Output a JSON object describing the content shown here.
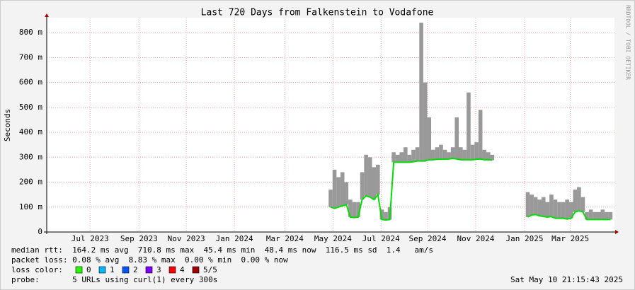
{
  "chart_data": {
    "type": "line",
    "title": "Last 720 Days from Falkenstein to Vodafone",
    "y_label": "Seconds",
    "side_label": "RRDTOOL / TOBI OETIKER",
    "xlim": [
      0,
      720
    ],
    "xticks": [
      {
        "value": 55,
        "label": "Jul 2023"
      },
      {
        "value": 117,
        "label": "Sep 2023"
      },
      {
        "value": 177,
        "label": "Nov 2023"
      },
      {
        "value": 238,
        "label": "Jan 2024"
      },
      {
        "value": 302,
        "label": "Mar 2024"
      },
      {
        "value": 363,
        "label": "May 2024"
      },
      {
        "value": 424,
        "label": "Jul 2024"
      },
      {
        "value": 483,
        "label": "Sep 2024"
      },
      {
        "value": 544,
        "label": "Nov 2024"
      },
      {
        "value": 606,
        "label": "Jan 2025"
      },
      {
        "value": 664,
        "label": "Mar 2025"
      }
    ],
    "ylim": [
      0,
      0.86
    ],
    "yticks": [
      0,
      {
        "value": 0.1,
        "label": "100 m"
      },
      {
        "value": 0.2,
        "label": "200 m"
      },
      {
        "value": 0.3,
        "label": "300 m"
      },
      {
        "value": 0.4,
        "label": "400 m"
      },
      {
        "value": 0.5,
        "label": "500 m"
      },
      {
        "value": 0.6,
        "label": "600 m"
      },
      {
        "value": 0.7,
        "label": "700 m"
      },
      {
        "value": 0.8,
        "label": "800 m"
      }
    ],
    "grid": true,
    "x": [
      360,
      365,
      370,
      375,
      380,
      385,
      390,
      395,
      400,
      405,
      410,
      415,
      420,
      425,
      430,
      435,
      440,
      445,
      450,
      455,
      460,
      465,
      470,
      475,
      480,
      485,
      490,
      495,
      500,
      505,
      510,
      515,
      520,
      525,
      530,
      535,
      540,
      545,
      550,
      555,
      560,
      565,
      570,
      575,
      580,
      585,
      590,
      595,
      600,
      605,
      610,
      615,
      620,
      625,
      630,
      635,
      640,
      645,
      650,
      655,
      660,
      665,
      670,
      675,
      680,
      685,
      690,
      695,
      700,
      705,
      710,
      715
    ],
    "series": [
      {
        "color": "#00dd00",
        "values": [
          0.1,
          0.095,
          0.1,
          0.105,
          0.11,
          0.06,
          0.058,
          0.06,
          0.13,
          0.145,
          0.14,
          0.13,
          0.15,
          0.05,
          0.048,
          0.05,
          0.28,
          0.28,
          0.28,
          0.28,
          0.28,
          0.282,
          0.285,
          0.285,
          0.285,
          0.29,
          0.29,
          0.292,
          0.292,
          0.292,
          0.293,
          0.295,
          0.293,
          0.29,
          0.29,
          0.29,
          0.29,
          0.292,
          0.293,
          0.29,
          0.29,
          0.288,
          null,
          null,
          null,
          null,
          null,
          null,
          null,
          null,
          0.06,
          0.068,
          0.07,
          0.065,
          0.062,
          0.06,
          0.062,
          0.055,
          0.055,
          0.055,
          0.052,
          0.055,
          0.08,
          0.085,
          0.08,
          0.05,
          0.05,
          0.05,
          0.05,
          0.05,
          0.05,
          0.05
        ]
      },
      {
        "color": "#999999",
        "values": [
          0.17,
          0.25,
          0.22,
          0.24,
          0.2,
          0.13,
          0.12,
          0.12,
          0.24,
          0.31,
          0.3,
          0.26,
          0.27,
          0.09,
          0.08,
          0.1,
          0.32,
          0.31,
          0.32,
          0.34,
          0.31,
          0.33,
          0.34,
          0.84,
          0.6,
          0.46,
          0.33,
          0.34,
          0.35,
          0.33,
          0.32,
          0.34,
          0.46,
          0.34,
          0.33,
          0.56,
          0.35,
          0.36,
          0.49,
          0.33,
          0.32,
          0.31,
          null,
          null,
          null,
          null,
          null,
          null,
          null,
          null,
          0.16,
          0.15,
          0.14,
          0.13,
          0.14,
          0.12,
          0.15,
          0.13,
          0.12,
          0.12,
          0.13,
          0.12,
          0.17,
          0.18,
          0.14,
          0.08,
          0.09,
          0.08,
          0.08,
          0.09,
          0.08,
          0.08
        ]
      }
    ],
    "stats": [
      "median rtt:  164.2 ms avg  710.8 ms max  45.4 ms min  48.4 ms now  116.5 ms sd  1.4   am/s",
      "packet loss: 0.08 % avg  8.83 % max  0.00 % min  0.00 % now"
    ],
    "loss_label": "loss color:",
    "loss_colors": [
      {
        "label": "0",
        "color": "#26ff00"
      },
      {
        "label": "1",
        "color": "#00b8ff"
      },
      {
        "label": "2",
        "color": "#0059ff"
      },
      {
        "label": "3",
        "color": "#7e00ff"
      },
      {
        "label": "4",
        "color": "#ff0000"
      },
      {
        "label": "5/5",
        "color": "#a10000"
      }
    ],
    "probe": "probe:       5 URLs using curl(1) every 300s",
    "timestamp": "Sat May 10 21:15:43 2025"
  }
}
